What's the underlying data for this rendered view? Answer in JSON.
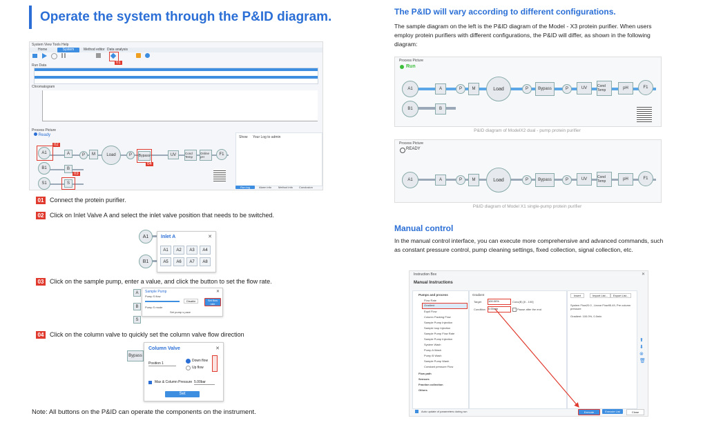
{
  "left": {
    "title": "Operate the system through the P&ID diagram.",
    "steps": [
      {
        "num": "01",
        "text": "Connect the protein purifier."
      },
      {
        "num": "02",
        "text": "Click on Inlet Valve A and select the inlet valve position that needs to be switched."
      },
      {
        "num": "03",
        "text": "Click on the sample pump, enter a value, and click the button to set the flow rate."
      },
      {
        "num": "04",
        "text": "Click on the column valve to quickly set the column valve flow direction"
      }
    ],
    "note": "Note: All buttons on the P&ID can operate the components on the instrument.",
    "screenshot": {
      "menu": "System  View  Tools  Help",
      "tabs": [
        "Home",
        "System control",
        "Method editor",
        "Data analysis"
      ],
      "toolbar": [
        "Open",
        "Run",
        "Hold",
        "Pause",
        "Stop",
        "Connect",
        "Lock",
        "Manual"
      ],
      "run_data_label": "Run Data",
      "chromatogram_label": "Chromatogram",
      "process_picture_label": "Process Picture",
      "status": "Ready",
      "nodes": {
        "a1": "A1",
        "b1": "B1",
        "s1": "S1",
        "a": "A",
        "b": "B",
        "s": "S",
        "p": "P",
        "m": "M",
        "load": "Load",
        "bypass": "Bypass",
        "uv": "UV",
        "cond": "Cond Temp",
        "online": "Online pH",
        "f1": "F1"
      },
      "badges": {
        "b01": "01",
        "b02": "02",
        "b03": "03",
        "b04": "04"
      },
      "right_panel": {
        "show": "Show",
        "log": "Your Log to admin"
      },
      "bottom_tabs": [
        "Run log",
        "Alarm info",
        "Method info",
        "Conclusion"
      ]
    },
    "inlet_popup": {
      "title": "Inlet A",
      "close": "✕",
      "a1": "A1",
      "b1": "B1",
      "cells": [
        "A1",
        "A2",
        "A3",
        "A4",
        "A5",
        "A6",
        "A7",
        "A8"
      ]
    },
    "pump_popup": {
      "title": "Sample Pump",
      "sub1": "Pump S flow",
      "sub2": "Pump S mode",
      "btn1": "Disable",
      "btn2": "Set flow rate",
      "mode_val": "Set pump s pace",
      "close": "✕",
      "a": "A",
      "b": "B",
      "s": "S"
    },
    "column_popup": {
      "title": "Column Valve",
      "close": "✕",
      "side": "Bypass",
      "position": "Position 1",
      "down": "Down flow",
      "up": "Up flow",
      "max": "Max & Column Pressure",
      "max_val": "5.00bar",
      "set": "Set"
    }
  },
  "right": {
    "h1": "The P&ID will vary according to different configurations.",
    "p1": "The sample diagram on the left is the P&ID diagram of the Model - X3 protein purifier. When users employ protein purifiers with different configurations, the P&ID will differ, as shown in the following diagram:",
    "diag1": {
      "label": "Process Picture",
      "status": "Run",
      "caption": "P&ID diagram of ModelX2 dual - pump protein purifier",
      "nodes": {
        "a1": "A1",
        "b1": "B1",
        "a": "A",
        "b": "B",
        "p1": "P",
        "m": "M",
        "load": "Load",
        "p2": "P",
        "bypass": "Bypass",
        "p3": "P",
        "uv": "UV",
        "cond": "Cond Temp",
        "ph": "pH",
        "f1": "F1"
      }
    },
    "diag2": {
      "label": "Process Picture",
      "status": "READY",
      "caption": "P&ID diagram of Model X1 single-pump protein purifier",
      "nodes": {
        "a1": "A1",
        "a": "A",
        "p1": "P",
        "m": "M",
        "load": "Load",
        "p2": "P",
        "bypass": "Bypass",
        "p3": "P",
        "uv": "UV",
        "cond": "Cond Temp",
        "ph": "pH",
        "f1": "F1"
      }
    },
    "h2": "Manual control",
    "p2": "In the manual control interface, you can execute more comprehensive and advanced commands, such as constant pressure control, pump cleaning settings, fixed collection, signal collection, etc.",
    "manual": {
      "window_title": "Instruction Box",
      "header": "Manual Instructions",
      "tree_root": "Pumps and process",
      "tree": [
        "Flow Rate",
        "Gradient",
        "Equil Flow",
        "Column Packing Flow",
        "Sample Pump Injection",
        "Sample loop Injection",
        "Sample Pump Flow Rate",
        "Sample Pump Injection",
        "System Wash",
        "Pump A Wash",
        "Pump B Wash",
        "Sample Pump Wash",
        "Constant pressure Flow"
      ],
      "tree_other": [
        "Flow path",
        "Sensors",
        "Fraction collection",
        "Others"
      ],
      "gradient_label": "Gradient",
      "target_label": "Target",
      "target_val": "100.00%",
      "target_hint": "Conc(B) [0 - 100]",
      "condition_label": "Condition",
      "condition_val": "0.00min",
      "pause_label": "Pause after the end",
      "btns": [
        "Insert",
        "Import List...",
        "Export List..."
      ],
      "summary1": "System Flow20.0 , Linear Flow95.49, Pre column pressure",
      "summary2": "Gradient: 100.0%, 0.0min",
      "auto_update": "Auto update of parameters during run",
      "footer_btns": [
        "Execute",
        "Execute List",
        "Close"
      ]
    }
  }
}
